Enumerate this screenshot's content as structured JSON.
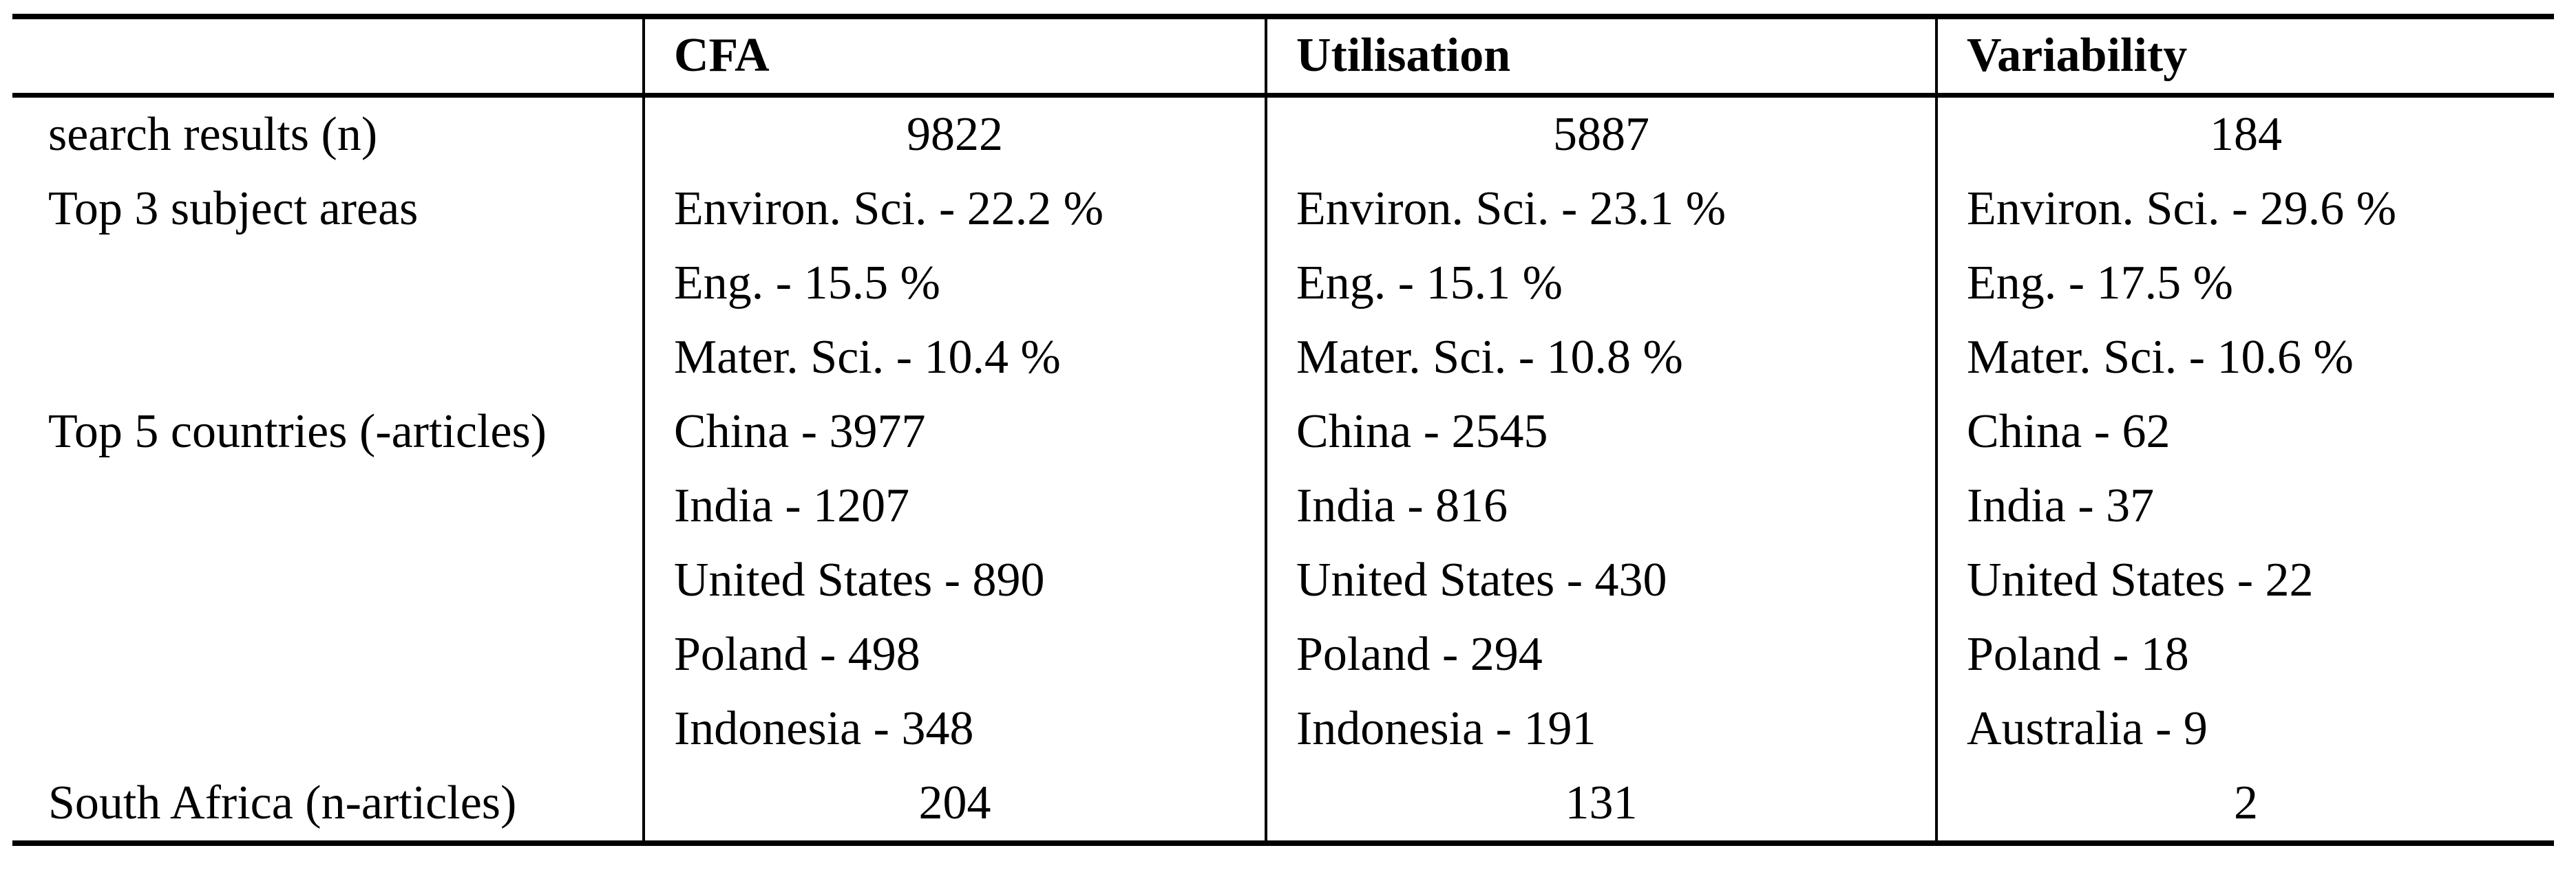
{
  "page": {
    "background_color": "#ffffff",
    "text_color": "#000000",
    "rule_color": "#000000"
  },
  "chart_data": {
    "type": "table",
    "columns": [
      "",
      "CFA",
      "Utilisation",
      "Variability"
    ],
    "rows": [
      {
        "label": "search results (n)",
        "kind": "number",
        "values": [
          "9822",
          "5887",
          "184"
        ]
      },
      {
        "label": "Top 3 subject areas",
        "kind": "list",
        "values": [
          [
            "Environ. Sci. - 22.2 %",
            "Eng. - 15.5 %",
            "Mater. Sci. - 10.4 %"
          ],
          [
            "Environ. Sci. - 23.1 %",
            "Eng. - 15.1 %",
            "Mater. Sci. - 10.8 %"
          ],
          [
            "Environ. Sci. - 29.6 %",
            "Eng. - 17.5 %",
            "Mater. Sci. - 10.6 %"
          ]
        ]
      },
      {
        "label": "Top 5 countries (-articles)",
        "kind": "list",
        "values": [
          [
            "China - 3977",
            "India - 1207",
            "United States - 890",
            "Poland - 498",
            "Indonesia - 348"
          ],
          [
            "China - 2545",
            "India - 816",
            "United States - 430",
            "Poland - 294",
            "Indonesia - 191"
          ],
          [
            "China - 62",
            "India - 37",
            "United States - 22",
            "Poland - 18",
            "Australia - 9"
          ]
        ]
      },
      {
        "label": "South Africa (n-articles)",
        "kind": "number",
        "values": [
          "204",
          "131",
          "2"
        ]
      }
    ]
  }
}
